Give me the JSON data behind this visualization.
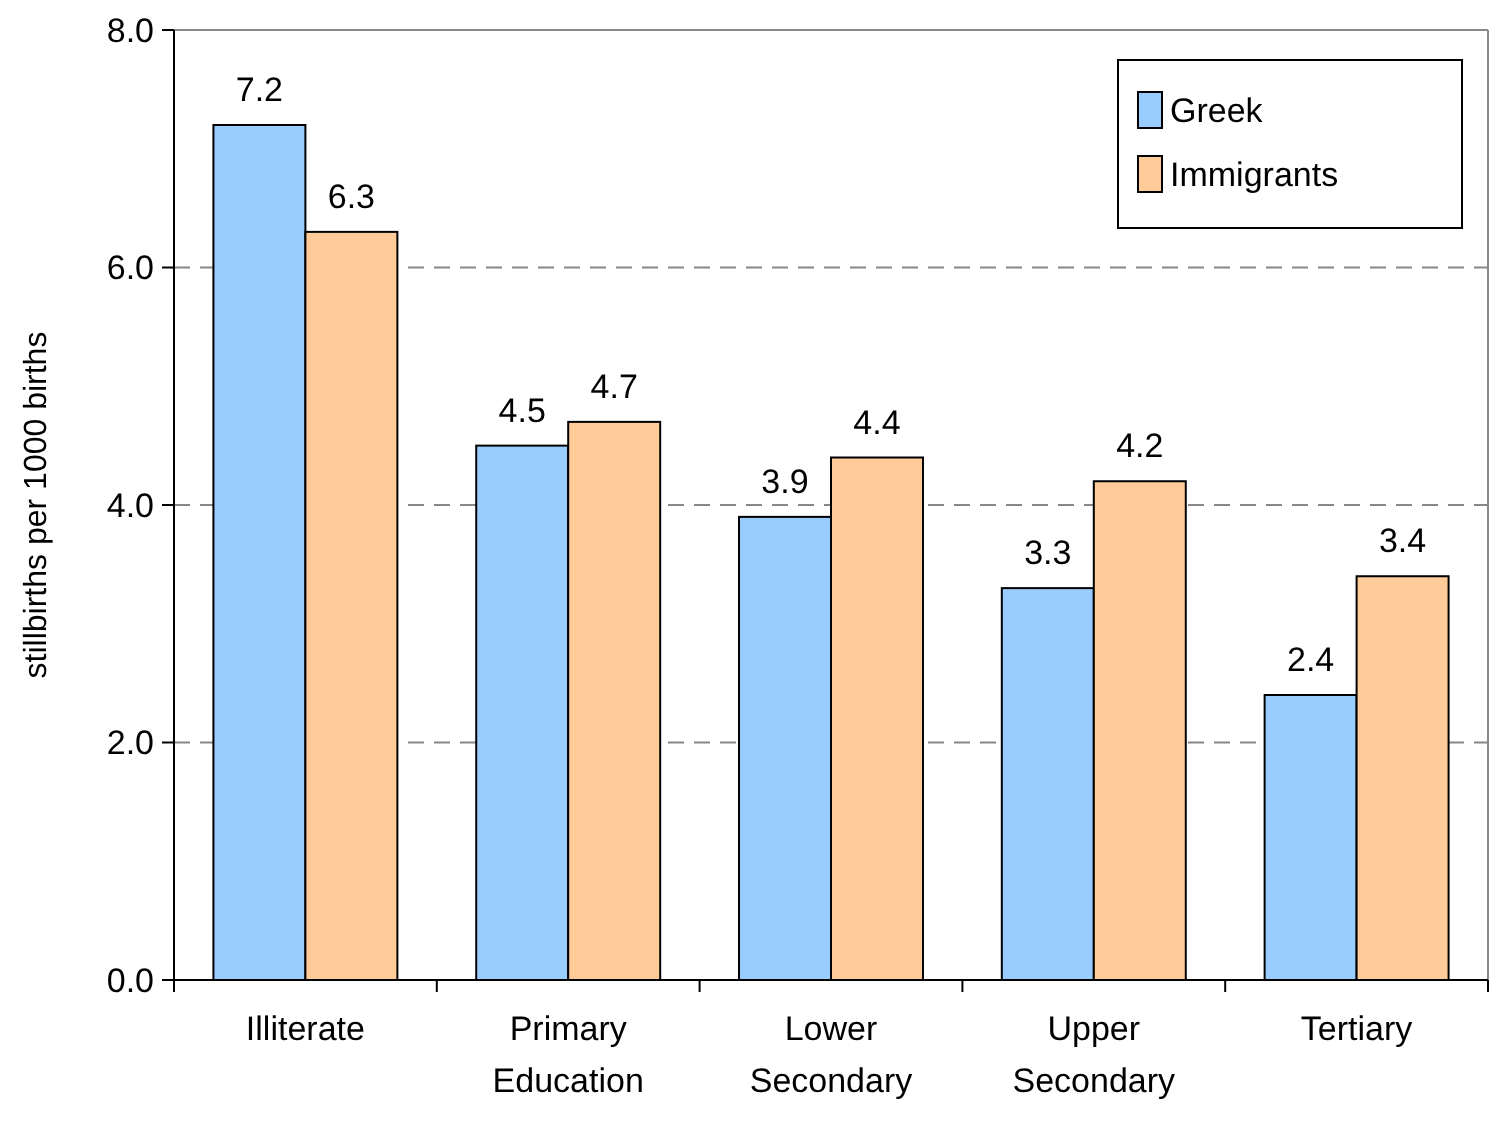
{
  "chart_data": {
    "type": "bar",
    "ylabel": "stillbirths per 1000 births",
    "categories": [
      "Illiterate",
      "Primary Education",
      "Lower Secondary",
      "Upper Secondary",
      "Tertiary"
    ],
    "series": [
      {
        "name": "Greek",
        "color": "#99ccff",
        "values": [
          7.2,
          4.5,
          3.9,
          3.3,
          2.4
        ]
      },
      {
        "name": "Immigrants",
        "color": "#ffcc99",
        "values": [
          6.3,
          4.7,
          4.4,
          4.2,
          3.4
        ]
      }
    ],
    "ylim": [
      0,
      8
    ],
    "yticks": [
      {
        "value": 0,
        "label": "0.0"
      },
      {
        "value": 2,
        "label": "2.0"
      },
      {
        "value": 4,
        "label": "4.0"
      },
      {
        "value": 6,
        "label": "6.0"
      },
      {
        "value": 8,
        "label": "8.0"
      }
    ],
    "grid": "y",
    "legend": "top right",
    "data_labels": true
  }
}
